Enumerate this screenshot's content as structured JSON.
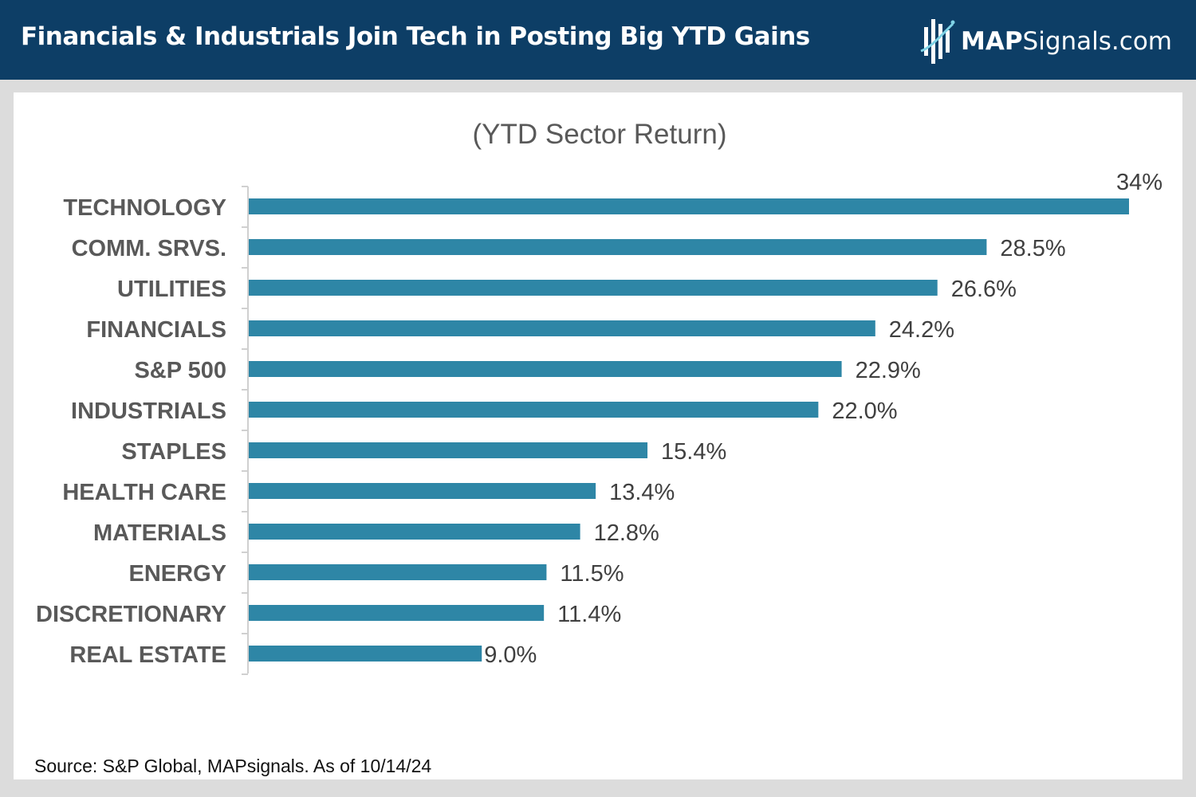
{
  "header": {
    "title": "Financials & Industrials Join Tech in Posting Big YTD Gains",
    "logo_bold": "MAP",
    "logo_rest": "Signals.com",
    "background_color": "#0d3e66"
  },
  "chart_data": {
    "type": "bar",
    "orientation": "horizontal",
    "title": "(YTD Sector Return)",
    "xlabel": "",
    "ylabel": "",
    "xlim": [
      0,
      34
    ],
    "bar_color": "#2e86a6",
    "categories": [
      "TECHNOLOGY",
      "COMM. SRVS.",
      "UTILITIES",
      "FINANCIALS",
      "S&P 500",
      "INDUSTRIALS",
      "STAPLES",
      "HEALTH CARE",
      "MATERIALS",
      "ENERGY",
      "DISCRETIONARY",
      "REAL ESTATE"
    ],
    "values": [
      34,
      28.5,
      26.6,
      24.2,
      22.9,
      22.0,
      15.4,
      13.4,
      12.8,
      11.5,
      11.4,
      9.0
    ],
    "data_labels": [
      "34%",
      "28.5%",
      "26.6%",
      "24.2%",
      "22.9%",
      "22.0%",
      "15.4%",
      "13.4%",
      "12.8%",
      "11.5%",
      "11.4%",
      "9.0%"
    ]
  },
  "footer": {
    "source": "Source: S&P Global, MAPsignals. As of 10/14/24"
  }
}
